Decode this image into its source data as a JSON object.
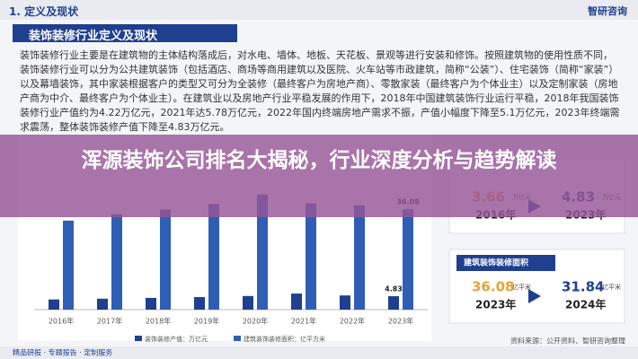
{
  "header": {
    "section": "1. 定义及现状",
    "logo": "智研咨询"
  },
  "heading": "装饰装修行业定义及现状",
  "paragraph": "装饰装修行业主要是在建筑物的主体结构落成后，对水电、墙体、地板、天花板、景观等进行安装和修饰。按照建筑物的使用性质不同，装饰装修行业可以分为公共建筑装饰（包括酒店、商场等商用建筑以及医院、火车站等市政建筑，简称“公装”）、住宅装饰（简称“家装”）以及幕墙装饰，其中家装根据客户的类型又可分为全装修（最终客户为房地产商）、零散家装（最终客户为个体业主）以及定制家装（房地产商为中介、最终客户为个体业主）。在建筑业以及房地产行业平稳发展的作用下，2018年中国建筑装饰行业运行平稳，2018年我国装饰装修行业产值约为4.22万亿元，2021年达5.78万亿元，2022年国内终端房地产需求不振，产值小幅度下降至5.1万亿元，2023年终端需求震荡，整体装饰装修产值下降至4.83万亿元。",
  "overlay_title": "浑源装饰公司排名大揭秘，行业深度分析与趋势解读",
  "chart": {
    "type": "bar",
    "categories": [
      "2016年",
      "2017年",
      "2018年",
      "2019年",
      "2020年",
      "2021年",
      "2022年",
      "2023年"
    ],
    "series": [
      {
        "name": "装饰装修产值：万亿元",
        "color": "#1f3f8f",
        "values": [
          3.66,
          3.94,
          4.22,
          4.5,
          4.9,
          5.78,
          5.1,
          4.83
        ]
      },
      {
        "name": "建筑装饰装修面积：亿平方米",
        "color": "#2f5fb5",
        "values": [
          32,
          34.3,
          36,
          38,
          41.4,
          38.2,
          37.5,
          36.08
        ]
      }
    ]
  },
  "panels": [
    {
      "left": {
        "value": "3.66",
        "unit": "万亿元",
        "year": "2016年"
      },
      "right": {
        "value": "4.83",
        "unit": "万亿元",
        "year": "2023年"
      }
    },
    {
      "title": "建筑装饰装修面积",
      "left": {
        "value": "36.08",
        "unit": "亿平米",
        "year": "2023年"
      },
      "right": {
        "value": "31.84",
        "unit": "亿平米",
        "year": "2024年"
      }
    }
  ],
  "footer": {
    "left": "精品研报 · 专题报告 · 定制服务",
    "right": "资料来源：公开资料、智研咨询整理"
  }
}
